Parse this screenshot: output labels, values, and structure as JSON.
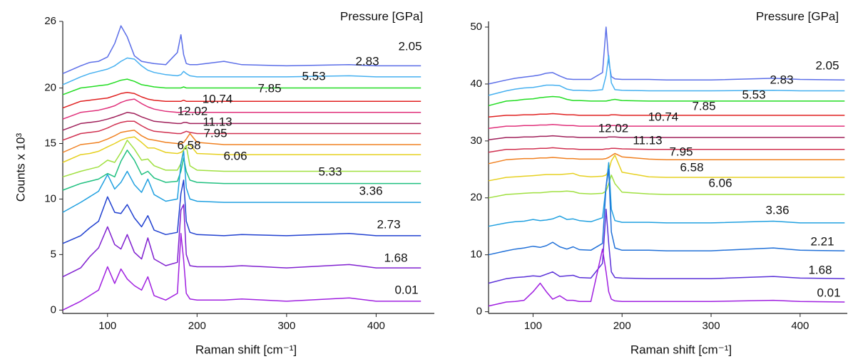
{
  "chart_data": [
    {
      "type": "line",
      "ylabel": "Counts x 10³",
      "xlabel": "Raman shift [cm⁻¹]",
      "legend_title": "Pressure [GPa]",
      "xlim": [
        50,
        465
      ],
      "xticks": [
        100,
        200,
        300,
        400
      ],
      "ylim": [
        -0.3,
        26
      ],
      "yticks": [
        0,
        5,
        10,
        15,
        20,
        26
      ],
      "x": [
        50,
        70,
        80,
        90,
        100,
        108,
        115,
        122,
        130,
        138,
        145,
        152,
        165,
        178,
        182,
        185,
        188,
        192,
        200,
        230,
        250,
        300,
        370,
        400,
        450
      ],
      "series": [
        {
          "name": "2.05",
          "color": "#5b6ee8",
          "values": [
            21.3,
            22.0,
            22.3,
            22.4,
            22.8,
            24.0,
            25.6,
            24.6,
            22.9,
            22.4,
            22.3,
            22.2,
            22.1,
            23.2,
            24.8,
            23.0,
            22.2,
            22.1,
            22.1,
            22.4,
            22.1,
            22.0,
            22.1,
            22.0,
            22.0
          ]
        },
        {
          "name": "2.83",
          "color": "#45b0f0",
          "values": [
            20.3,
            21.0,
            21.3,
            21.5,
            21.7,
            22.0,
            22.4,
            22.7,
            22.6,
            22.0,
            21.6,
            21.4,
            21.2,
            21.1,
            21.2,
            21.5,
            21.3,
            21.1,
            21.0,
            21.0,
            21.0,
            21.0,
            21.1,
            21.0,
            21.0
          ]
        },
        {
          "name": "5.53",
          "color": "#22dd22",
          "values": [
            19.4,
            20.0,
            20.1,
            20.2,
            20.3,
            20.5,
            20.7,
            20.8,
            20.6,
            20.3,
            20.2,
            20.1,
            20.0,
            20.0,
            20.0,
            20.1,
            20.0,
            20.0,
            20.0,
            20.0,
            20.0,
            20.0,
            20.0,
            20.0,
            20.0
          ]
        },
        {
          "name": "7.85",
          "color": "#e02020",
          "values": [
            18.2,
            18.8,
            18.9,
            19.0,
            19.1,
            19.3,
            19.5,
            19.6,
            19.5,
            19.2,
            19.0,
            18.9,
            18.8,
            18.8,
            18.8,
            18.9,
            18.8,
            18.8,
            18.8,
            18.8,
            18.8,
            18.8,
            18.8,
            18.8,
            18.8
          ]
        },
        {
          "name": "10.74",
          "color": "#e0307a",
          "values": [
            17.2,
            17.8,
            17.9,
            18.0,
            18.2,
            18.4,
            18.7,
            18.9,
            19.0,
            18.6,
            18.3,
            18.1,
            17.9,
            17.8,
            17.8,
            17.9,
            17.9,
            17.8,
            17.8,
            17.8,
            17.8,
            17.8,
            17.8,
            17.8,
            17.8
          ]
        },
        {
          "name": "12.02",
          "color": "#a0205a",
          "values": [
            16.2,
            16.8,
            16.9,
            17.0,
            17.2,
            17.4,
            17.6,
            17.8,
            17.7,
            17.4,
            17.2,
            17.0,
            16.9,
            16.8,
            16.8,
            16.9,
            16.9,
            16.8,
            16.8,
            16.8,
            16.8,
            16.8,
            16.8,
            16.8,
            16.8
          ]
        },
        {
          "name": "11.13",
          "color": "#d03050",
          "values": [
            15.3,
            15.9,
            16.0,
            16.1,
            16.4,
            16.7,
            16.9,
            17.0,
            17.0,
            16.6,
            16.3,
            16.1,
            16.0,
            15.9,
            15.9,
            16.0,
            16.1,
            16.0,
            15.9,
            15.9,
            15.9,
            15.9,
            15.9,
            15.9,
            15.9
          ]
        },
        {
          "name": "7.95",
          "color": "#f08020",
          "values": [
            14.2,
            14.9,
            15.0,
            15.1,
            15.4,
            15.7,
            16.0,
            16.1,
            16.2,
            15.7,
            15.4,
            15.3,
            15.1,
            15.0,
            15.0,
            15.1,
            15.4,
            15.9,
            15.1,
            14.9,
            14.9,
            14.9,
            14.9,
            14.9,
            14.9
          ]
        },
        {
          "name": "6.58",
          "color": "#e6d020",
          "values": [
            13.3,
            14.0,
            14.1,
            14.3,
            14.7,
            15.0,
            15.3,
            15.5,
            15.6,
            15.1,
            14.6,
            14.6,
            14.2,
            14.1,
            14.2,
            14.4,
            14.8,
            14.9,
            14.1,
            14.0,
            14.0,
            14.0,
            14.0,
            14.0,
            14.0
          ]
        },
        {
          "name": "6.06",
          "color": "#a0e040",
          "values": [
            12.0,
            12.5,
            12.7,
            12.9,
            13.5,
            13.3,
            14.2,
            15.3,
            14.5,
            13.5,
            13.6,
            13.0,
            12.6,
            12.6,
            13.2,
            14.5,
            14.8,
            13.0,
            12.6,
            12.5,
            12.5,
            12.5,
            12.5,
            12.5,
            12.5
          ]
        },
        {
          "name": "5.33",
          "color": "#20c080",
          "values": [
            10.8,
            11.4,
            11.6,
            11.8,
            12.3,
            12.0,
            13.4,
            14.4,
            13.5,
            12.2,
            12.5,
            11.9,
            11.5,
            11.6,
            12.5,
            13.7,
            12.5,
            11.7,
            11.5,
            11.4,
            11.4,
            11.4,
            11.4,
            11.4,
            11.4
          ]
        },
        {
          "name": "3.36",
          "color": "#20a0e0",
          "values": [
            8.8,
            9.7,
            10.2,
            10.7,
            12.2,
            10.9,
            11.5,
            12.5,
            11.3,
            10.6,
            11.8,
            10.4,
            9.8,
            10.0,
            13.2,
            14.3,
            11.0,
            10.0,
            9.8,
            9.7,
            9.7,
            9.7,
            9.7,
            9.7,
            9.7
          ]
        },
        {
          "name": "2.73",
          "color": "#2040d0",
          "values": [
            6.0,
            6.7,
            7.4,
            8.0,
            10.2,
            8.8,
            8.7,
            9.5,
            8.3,
            7.5,
            8.5,
            7.2,
            6.8,
            7.0,
            10.5,
            11.7,
            8.0,
            7.0,
            6.8,
            6.7,
            6.8,
            6.7,
            6.9,
            6.7,
            6.7
          ]
        },
        {
          "name": "1.68",
          "color": "#8020d0",
          "values": [
            3.0,
            3.8,
            4.8,
            5.6,
            7.5,
            5.9,
            5.5,
            6.8,
            5.2,
            4.6,
            6.5,
            4.6,
            4.0,
            4.3,
            9.0,
            9.5,
            5.0,
            4.0,
            3.9,
            3.9,
            4.0,
            3.8,
            4.1,
            3.8,
            3.8
          ]
        },
        {
          "name": "0.01",
          "color": "#a020e0",
          "values": [
            0.0,
            0.8,
            1.3,
            1.8,
            3.9,
            2.4,
            3.7,
            2.8,
            2.2,
            1.8,
            3.0,
            1.3,
            0.9,
            1.5,
            6.9,
            4.5,
            1.5,
            1.0,
            0.9,
            0.9,
            1.0,
            0.8,
            1.1,
            0.8,
            0.8
          ]
        }
      ]
    },
    {
      "type": "line",
      "xlabel": "Raman shift [cm⁻¹]",
      "legend_title": "Pressure [GPa]",
      "xlim": [
        50,
        453
      ],
      "xticks": [
        100,
        200,
        300,
        400
      ],
      "ylim": [
        -0.3,
        51
      ],
      "yticks": [
        0,
        10,
        20,
        30,
        40,
        50
      ],
      "x": [
        50,
        70,
        80,
        90,
        100,
        108,
        115,
        122,
        130,
        138,
        145,
        152,
        165,
        178,
        182,
        185,
        188,
        192,
        200,
        230,
        250,
        300,
        370,
        400,
        450
      ],
      "series": [
        {
          "name": "2.05",
          "color": "#5b6ee8",
          "values": [
            40.0,
            40.7,
            41.0,
            41.2,
            41.4,
            41.6,
            41.9,
            42.0,
            41.4,
            40.9,
            40.8,
            40.8,
            40.8,
            42.0,
            50.0,
            44.0,
            41.3,
            40.9,
            40.8,
            40.8,
            40.7,
            40.7,
            41.0,
            40.8,
            40.7
          ]
        },
        {
          "name": "2.83",
          "color": "#45b0f0",
          "values": [
            38.0,
            38.8,
            39.1,
            39.3,
            39.4,
            39.6,
            39.8,
            39.8,
            39.7,
            39.1,
            38.9,
            38.9,
            38.8,
            39.0,
            41.5,
            45.0,
            40.2,
            39.0,
            38.9,
            38.8,
            38.8,
            38.8,
            38.9,
            38.8,
            38.8
          ]
        },
        {
          "name": "5.53",
          "color": "#22dd22",
          "values": [
            36.2,
            37.0,
            37.1,
            37.3,
            37.4,
            37.6,
            37.7,
            37.8,
            37.7,
            37.3,
            37.1,
            37.1,
            37.0,
            37.0,
            37.0,
            37.1,
            37.2,
            37.3,
            37.1,
            37.0,
            37.0,
            37.0,
            37.0,
            37.0,
            37.0
          ]
        },
        {
          "name": "7.85",
          "color": "#e02020",
          "values": [
            34.2,
            34.5,
            34.5,
            34.6,
            34.6,
            34.7,
            34.7,
            34.8,
            34.7,
            34.6,
            34.6,
            34.5,
            34.5,
            34.5,
            34.5,
            34.5,
            34.6,
            34.6,
            34.5,
            34.5,
            34.5,
            34.5,
            34.5,
            34.5,
            34.5
          ]
        },
        {
          "name": "10.74",
          "color": "#e0307a",
          "values": [
            32.2,
            32.6,
            32.6,
            32.7,
            32.7,
            32.8,
            32.8,
            32.9,
            32.8,
            32.7,
            32.7,
            32.6,
            32.6,
            32.6,
            32.6,
            32.6,
            32.7,
            32.7,
            32.6,
            32.6,
            32.6,
            32.6,
            32.6,
            32.6,
            32.6
          ]
        },
        {
          "name": "12.02",
          "color": "#a0205a",
          "values": [
            30.2,
            30.6,
            30.6,
            30.7,
            30.7,
            30.8,
            30.8,
            30.9,
            30.8,
            30.7,
            30.7,
            30.6,
            30.6,
            30.6,
            30.6,
            30.7,
            30.7,
            30.7,
            30.6,
            30.6,
            30.6,
            30.6,
            30.6,
            30.6,
            30.6
          ]
        },
        {
          "name": "11.13",
          "color": "#d03050",
          "values": [
            28.0,
            28.5,
            28.5,
            28.6,
            28.6,
            28.7,
            28.7,
            28.8,
            28.7,
            28.6,
            28.6,
            28.5,
            28.5,
            28.5,
            28.6,
            28.6,
            28.7,
            28.7,
            28.6,
            28.5,
            28.5,
            28.5,
            28.5,
            28.5,
            28.5
          ]
        },
        {
          "name": "7.95",
          "color": "#f08020",
          "values": [
            26.0,
            26.7,
            26.8,
            26.9,
            26.9,
            27.0,
            27.0,
            27.1,
            27.0,
            26.9,
            26.9,
            26.8,
            26.8,
            26.8,
            26.9,
            27.1,
            27.4,
            27.8,
            27.2,
            26.8,
            26.7,
            26.7,
            26.7,
            26.7,
            26.7
          ]
        },
        {
          "name": "6.58",
          "color": "#e6d020",
          "values": [
            23.0,
            23.6,
            23.7,
            23.8,
            23.9,
            24.0,
            24.1,
            24.1,
            24.1,
            24.2,
            24.3,
            23.9,
            23.7,
            23.8,
            24.0,
            24.8,
            26.5,
            27.5,
            24.5,
            23.7,
            23.6,
            23.6,
            23.6,
            23.6,
            23.6
          ]
        },
        {
          "name": "6.06",
          "color": "#a0e040",
          "values": [
            20.0,
            20.6,
            20.7,
            20.8,
            20.9,
            20.9,
            21.0,
            21.1,
            21.1,
            21.2,
            21.1,
            20.8,
            20.7,
            20.8,
            21.2,
            22.5,
            24.0,
            22.5,
            21.0,
            20.7,
            20.6,
            20.6,
            20.6,
            20.6,
            20.6
          ]
        },
        {
          "name": "3.36",
          "color": "#20a0e0",
          "values": [
            15.0,
            15.6,
            15.8,
            15.9,
            16.2,
            16.0,
            16.1,
            16.3,
            16.8,
            16.2,
            16.3,
            16.0,
            15.8,
            16.5,
            22.0,
            26.2,
            18.0,
            16.0,
            15.7,
            15.7,
            15.6,
            15.6,
            15.9,
            15.6,
            15.6
          ]
        },
        {
          "name": "2.21",
          "color": "#2070d8",
          "values": [
            10.0,
            10.7,
            11.0,
            11.2,
            11.5,
            11.3,
            11.6,
            12.2,
            11.4,
            11.0,
            11.4,
            10.9,
            10.8,
            12.0,
            22.0,
            25.0,
            14.0,
            11.2,
            10.8,
            10.8,
            10.7,
            10.7,
            11.2,
            10.8,
            10.7
          ]
        },
        {
          "name": "1.68",
          "color": "#5a30d8",
          "values": [
            5.0,
            5.8,
            6.0,
            6.1,
            6.3,
            6.2,
            6.6,
            7.0,
            6.2,
            6.3,
            6.4,
            6.0,
            5.9,
            8.5,
            18.0,
            12.0,
            7.0,
            6.0,
            5.9,
            5.8,
            5.8,
            5.8,
            6.2,
            5.9,
            5.8
          ]
        },
        {
          "name": "0.01",
          "color": "#a020e0",
          "values": [
            1.0,
            1.7,
            1.8,
            2.0,
            3.5,
            5.0,
            3.5,
            2.2,
            2.8,
            2.0,
            2.0,
            1.8,
            1.8,
            11.0,
            7.0,
            3.5,
            2.2,
            1.9,
            1.8,
            1.8,
            1.8,
            1.8,
            2.0,
            1.8,
            1.7
          ]
        }
      ]
    }
  ]
}
